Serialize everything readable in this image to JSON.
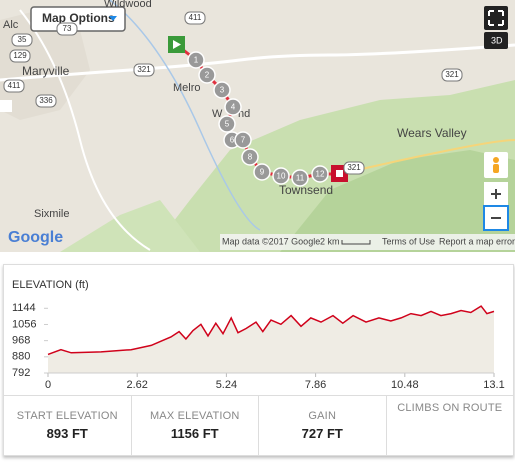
{
  "map": {
    "options_button": "Map Options",
    "places": [
      "Wildwood",
      "Alc",
      "Maryville",
      "Melro",
      "W",
      "nd",
      "Wears Valley",
      "Townsend",
      "Sixmile"
    ],
    "shields": [
      "411",
      "35",
      "129",
      "321",
      "411",
      "336",
      "321",
      "321",
      "73"
    ],
    "markers": [
      "1",
      "2",
      "3",
      "4",
      "5",
      "6",
      "7",
      "8",
      "9",
      "10",
      "11",
      "12"
    ],
    "view_3d": "3D",
    "google": "Google",
    "map_data": "Map data ©2017 Google",
    "scale": "2 km",
    "terms": "Terms of Use",
    "report": "Report a map error"
  },
  "chart_data": {
    "type": "area",
    "title": "ELEVATION (ft)",
    "x": [
      0,
      0.38,
      0.68,
      1.56,
      2.44,
      3.03,
      3.32,
      3.61,
      3.85,
      4.05,
      4.26,
      4.49,
      4.7,
      4.93,
      5.14,
      5.38,
      5.58,
      5.82,
      6.11,
      6.31,
      6.55,
      6.84,
      7.14,
      7.43,
      7.72,
      8.02,
      8.37,
      8.66,
      8.96,
      9.34,
      9.72,
      10.07,
      10.37,
      10.66,
      10.96,
      11.25,
      11.54,
      11.84,
      12.13,
      12.42,
      12.72,
      12.89,
      13.1
    ],
    "values": [
      893,
      919,
      902,
      907,
      919,
      942,
      965,
      988,
      1017,
      977,
      1023,
      1057,
      994,
      1063,
      1006,
      1092,
      1011,
      1034,
      1069,
      1017,
      1080,
      1057,
      1104,
      1046,
      1092,
      1069,
      1104,
      1063,
      1104,
      1069,
      1092,
      1075,
      1092,
      1115,
      1104,
      1127,
      1104,
      1115,
      1132,
      1121,
      1156,
      1115,
      1127
    ],
    "color": "#d0021b",
    "fill": "#efece4",
    "xlim": [
      0,
      13.1
    ],
    "xticks": [
      0,
      2.62,
      5.24,
      7.86,
      10.48,
      13.1
    ],
    "ylim": [
      792,
      1200
    ],
    "yticks": [
      792,
      880,
      968,
      1056,
      1144
    ]
  },
  "stats": [
    {
      "label": "START ELEVATION",
      "value": "893 FT"
    },
    {
      "label": "MAX ELEVATION",
      "value": "1156 FT"
    },
    {
      "label": "GAIN",
      "value": "727 FT"
    },
    {
      "label": "CLIMBS ON ROUTE"
    }
  ]
}
